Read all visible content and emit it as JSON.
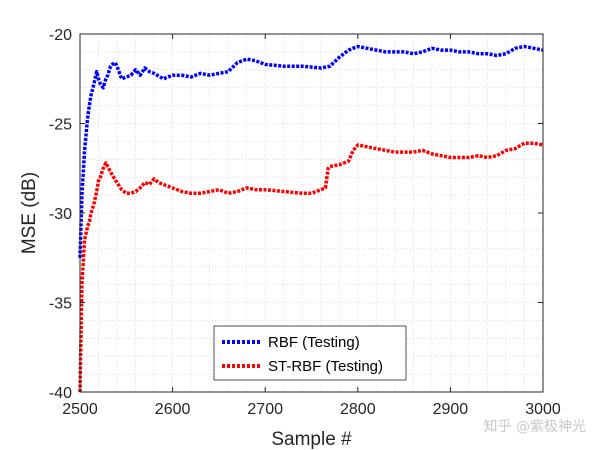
{
  "chart_data": {
    "type": "line",
    "title": "",
    "xlabel": "Sample #",
    "ylabel": "MSE (dB)",
    "xlim": [
      2500,
      3000
    ],
    "ylim": [
      -40,
      -20
    ],
    "xticks": [
      2500,
      2600,
      2700,
      2800,
      2900,
      3000
    ],
    "yticks": [
      -40,
      -35,
      -30,
      -25,
      -20
    ],
    "xtick_labels": [
      "2500",
      "2600",
      "2700",
      "2800",
      "2900",
      "3000"
    ],
    "ytick_labels": [
      "-40",
      "-35",
      "-30",
      "-25",
      "-20"
    ],
    "grid": "minor-dotted",
    "legend_position": "bottom-center",
    "series": [
      {
        "name": "RBF (Testing)",
        "color": "#0000ff",
        "x": [
          2500,
          2502,
          2505,
          2508,
          2510,
          2512,
          2515,
          2518,
          2520,
          2522,
          2525,
          2528,
          2530,
          2533,
          2535,
          2538,
          2540,
          2545,
          2550,
          2555,
          2560,
          2565,
          2570,
          2575,
          2580,
          2590,
          2600,
          2610,
          2620,
          2630,
          2640,
          2650,
          2660,
          2670,
          2680,
          2690,
          2700,
          2720,
          2740,
          2760,
          2770,
          2780,
          2790,
          2800,
          2810,
          2820,
          2830,
          2840,
          2850,
          2860,
          2870,
          2880,
          2890,
          2900,
          2910,
          2920,
          2930,
          2940,
          2950,
          2960,
          2970,
          2980,
          2990,
          3000
        ],
        "y": [
          -32.5,
          -29.0,
          -26.5,
          -24.8,
          -24.0,
          -23.4,
          -22.8,
          -22.1,
          -22.5,
          -22.8,
          -23.0,
          -22.5,
          -22.3,
          -21.8,
          -21.7,
          -21.6,
          -21.8,
          -22.5,
          -22.4,
          -22.3,
          -22.0,
          -22.3,
          -21.9,
          -22.1,
          -22.2,
          -22.5,
          -22.3,
          -22.3,
          -22.4,
          -22.2,
          -22.3,
          -22.2,
          -22.1,
          -21.6,
          -21.4,
          -21.5,
          -21.7,
          -21.8,
          -21.8,
          -21.9,
          -21.8,
          -21.3,
          -20.9,
          -20.7,
          -20.8,
          -20.9,
          -21.0,
          -21.0,
          -21.0,
          -21.1,
          -21.0,
          -20.8,
          -20.9,
          -20.9,
          -21.0,
          -21.0,
          -21.1,
          -21.1,
          -21.2,
          -21.1,
          -20.8,
          -20.7,
          -20.8,
          -20.9
        ]
      },
      {
        "name": "ST-RBF (Testing)",
        "color": "#ff0000",
        "x": [
          2500,
          2502,
          2505,
          2508,
          2510,
          2512,
          2515,
          2518,
          2520,
          2522,
          2525,
          2528,
          2530,
          2535,
          2540,
          2545,
          2550,
          2555,
          2560,
          2565,
          2570,
          2575,
          2580,
          2585,
          2590,
          2600,
          2610,
          2620,
          2630,
          2640,
          2650,
          2660,
          2670,
          2680,
          2690,
          2700,
          2720,
          2740,
          2750,
          2760,
          2765,
          2768,
          2770,
          2780,
          2790,
          2795,
          2800,
          2810,
          2820,
          2830,
          2840,
          2850,
          2860,
          2870,
          2880,
          2890,
          2900,
          2910,
          2920,
          2930,
          2940,
          2950,
          2960,
          2970,
          2980,
          2990,
          3000
        ],
        "y": [
          -40.0,
          -34.0,
          -31.5,
          -30.8,
          -30.5,
          -30.0,
          -29.5,
          -28.8,
          -28.2,
          -28.0,
          -27.5,
          -27.2,
          -27.4,
          -27.9,
          -28.3,
          -28.7,
          -28.9,
          -28.9,
          -28.8,
          -28.6,
          -28.3,
          -28.4,
          -28.1,
          -28.3,
          -28.4,
          -28.6,
          -28.8,
          -28.9,
          -28.9,
          -28.8,
          -28.7,
          -28.9,
          -28.8,
          -28.6,
          -28.7,
          -28.7,
          -28.8,
          -28.9,
          -28.9,
          -28.7,
          -28.6,
          -27.5,
          -27.4,
          -27.3,
          -27.1,
          -26.5,
          -26.2,
          -26.3,
          -26.4,
          -26.5,
          -26.6,
          -26.6,
          -26.6,
          -26.5,
          -26.7,
          -26.8,
          -26.9,
          -26.9,
          -26.9,
          -26.8,
          -26.9,
          -26.8,
          -26.5,
          -26.4,
          -26.1,
          -26.1,
          -26.2
        ]
      }
    ]
  },
  "watermark": "知乎 @紫极神光"
}
